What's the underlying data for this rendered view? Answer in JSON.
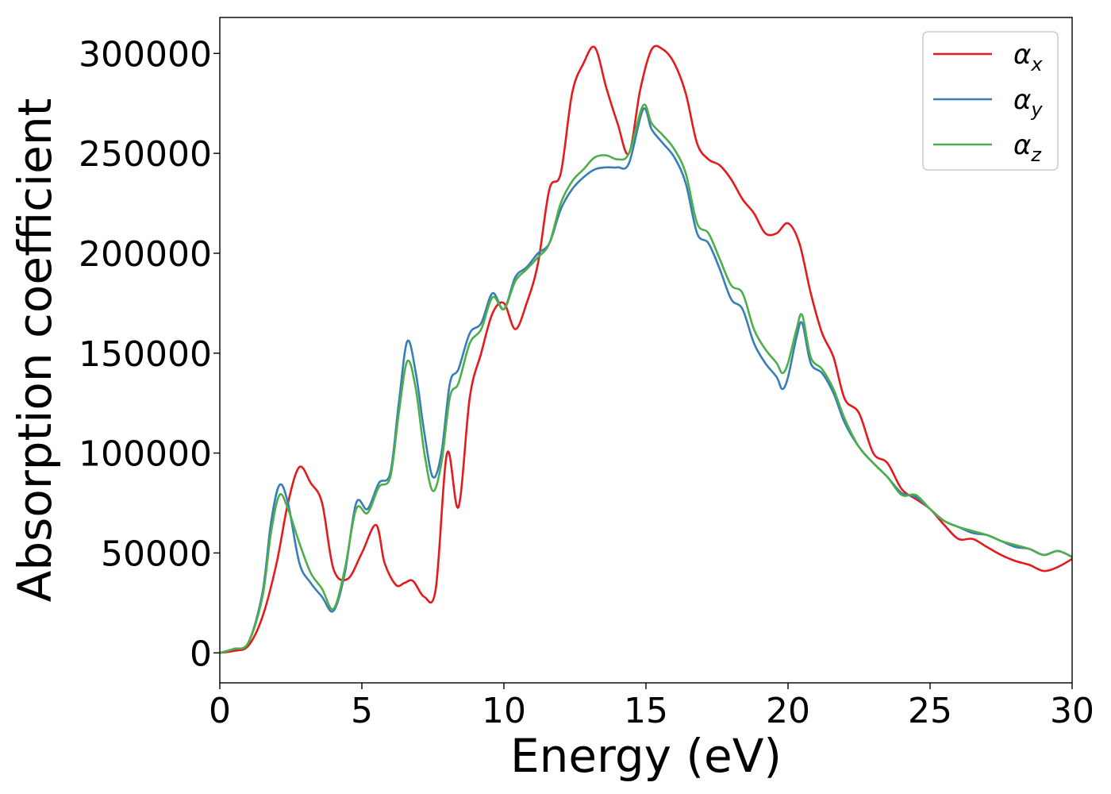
{
  "chart_data": {
    "type": "line",
    "xlabel": "Energy (eV)",
    "ylabel": "Absorption coefficient",
    "xlim": [
      0,
      30
    ],
    "ylim": [
      -15000,
      318000
    ],
    "xticks": [
      0,
      5,
      10,
      15,
      20,
      25,
      30
    ],
    "yticks": [
      0,
      50000,
      100000,
      150000,
      200000,
      250000,
      300000
    ],
    "grid": false,
    "legend_position": "top-right",
    "series": [
      {
        "name": "α",
        "name_sub": "x",
        "color": "#e41a1c",
        "x": [
          0,
          0.5,
          1.0,
          1.5,
          2.0,
          2.4,
          2.8,
          3.2,
          3.6,
          4.0,
          4.5,
          5.0,
          5.5,
          5.8,
          6.2,
          6.5,
          6.8,
          7.2,
          7.6,
          8.0,
          8.4,
          8.8,
          9.2,
          9.6,
          10.0,
          10.4,
          10.8,
          11.2,
          11.6,
          12.0,
          12.4,
          12.8,
          13.2,
          13.6,
          14.0,
          14.4,
          14.8,
          15.2,
          15.6,
          16.0,
          16.4,
          16.8,
          17.2,
          17.6,
          18.0,
          18.4,
          18.8,
          19.2,
          19.6,
          20.0,
          20.4,
          20.8,
          21.2,
          21.6,
          22.0,
          22.5,
          23.0,
          23.5,
          24.0,
          24.5,
          25.0,
          25.5,
          26.0,
          26.5,
          27.0,
          27.5,
          28.0,
          28.5,
          29.0,
          29.5,
          30.0
        ],
        "values": [
          0,
          1000,
          3500,
          18000,
          45000,
          75000,
          93000,
          85000,
          75000,
          42000,
          37000,
          50000,
          64000,
          45000,
          34000,
          35000,
          36000,
          28000,
          32000,
          100000,
          73000,
          128000,
          150000,
          170000,
          175000,
          162000,
          175000,
          195000,
          232000,
          240000,
          280000,
          295000,
          303000,
          283000,
          265000,
          250000,
          282000,
          302000,
          302000,
          295000,
          280000,
          255000,
          247000,
          244000,
          237000,
          227000,
          220000,
          210000,
          210000,
          215000,
          205000,
          180000,
          160000,
          148000,
          127000,
          120000,
          100000,
          95000,
          82000,
          77000,
          72000,
          64000,
          57000,
          57000,
          53000,
          49000,
          46000,
          44000,
          41000,
          43000,
          47000
        ]
      },
      {
        "name": "α",
        "name_sub": "y",
        "color": "#377eb8",
        "x": [
          0,
          0.5,
          1.0,
          1.5,
          1.8,
          2.1,
          2.4,
          2.8,
          3.2,
          3.6,
          4.0,
          4.4,
          4.8,
          5.2,
          5.6,
          6.0,
          6.3,
          6.6,
          6.9,
          7.2,
          7.5,
          7.8,
          8.1,
          8.4,
          8.8,
          9.2,
          9.6,
          10.0,
          10.4,
          10.8,
          11.2,
          11.6,
          12.0,
          12.4,
          12.8,
          13.2,
          13.6,
          14.0,
          14.4,
          14.9,
          15.2,
          15.6,
          16.0,
          16.4,
          16.8,
          17.2,
          17.6,
          18.0,
          18.4,
          18.8,
          19.2,
          19.6,
          19.8,
          20.0,
          20.3,
          20.5,
          20.8,
          21.2,
          21.6,
          22.0,
          22.5,
          23.0,
          23.5,
          24.0,
          24.5,
          25.0,
          25.5,
          26.0,
          26.5,
          27.0,
          27.5,
          28.0,
          28.5,
          29.0,
          29.5,
          30.0
        ],
        "values": [
          0,
          2000,
          5000,
          30000,
          65000,
          84000,
          75000,
          45000,
          35000,
          28000,
          21000,
          40000,
          75000,
          72000,
          85000,
          90000,
          125000,
          156000,
          140000,
          110000,
          88000,
          100000,
          135000,
          142000,
          160000,
          165000,
          180000,
          172000,
          188000,
          193000,
          200000,
          205000,
          222000,
          232000,
          238000,
          242000,
          243000,
          243000,
          245000,
          272000,
          262000,
          255000,
          248000,
          235000,
          210000,
          205000,
          192000,
          177000,
          172000,
          155000,
          145000,
          138000,
          132000,
          138000,
          158000,
          165000,
          145000,
          140000,
          130000,
          115000,
          103000,
          95000,
          88000,
          80000,
          78000,
          72000,
          66000,
          63000,
          60000,
          59000,
          56000,
          53000,
          52000,
          49000,
          51000,
          48000
        ]
      },
      {
        "name": "α",
        "name_sub": "z",
        "color": "#4daf4a",
        "x": [
          0,
          0.5,
          1.0,
          1.5,
          1.8,
          2.1,
          2.4,
          2.8,
          3.2,
          3.6,
          4.0,
          4.4,
          4.8,
          5.2,
          5.6,
          6.0,
          6.3,
          6.6,
          6.9,
          7.2,
          7.5,
          7.8,
          8.1,
          8.4,
          8.8,
          9.2,
          9.6,
          10.0,
          10.4,
          10.8,
          11.2,
          11.6,
          12.0,
          12.4,
          12.8,
          13.2,
          13.6,
          14.0,
          14.4,
          14.9,
          15.2,
          15.6,
          16.0,
          16.4,
          16.8,
          17.2,
          17.6,
          18.0,
          18.4,
          18.8,
          19.2,
          19.6,
          19.8,
          20.0,
          20.3,
          20.5,
          20.8,
          21.2,
          21.6,
          22.0,
          22.5,
          23.0,
          23.5,
          24.0,
          24.5,
          25.0,
          25.5,
          26.0,
          26.5,
          27.0,
          27.5,
          28.0,
          28.5,
          29.0,
          29.5,
          30.0
        ],
        "values": [
          0,
          2000,
          5000,
          28000,
          60000,
          79000,
          72000,
          55000,
          40000,
          32000,
          22000,
          42000,
          72000,
          70000,
          83000,
          88000,
          120000,
          146000,
          132000,
          100000,
          81000,
          95000,
          128000,
          135000,
          155000,
          162000,
          178000,
          172000,
          186000,
          192000,
          198000,
          205000,
          225000,
          236000,
          242000,
          248000,
          249000,
          247000,
          250000,
          274000,
          265000,
          259000,
          252000,
          240000,
          215000,
          210000,
          197000,
          184000,
          180000,
          162000,
          152000,
          145000,
          140000,
          145000,
          162000,
          169000,
          148000,
          142000,
          132000,
          117000,
          103000,
          95000,
          88000,
          79000,
          79000,
          72000,
          66000,
          63000,
          61000,
          59000,
          56000,
          54000,
          52000,
          49000,
          51000,
          48000
        ]
      }
    ]
  }
}
